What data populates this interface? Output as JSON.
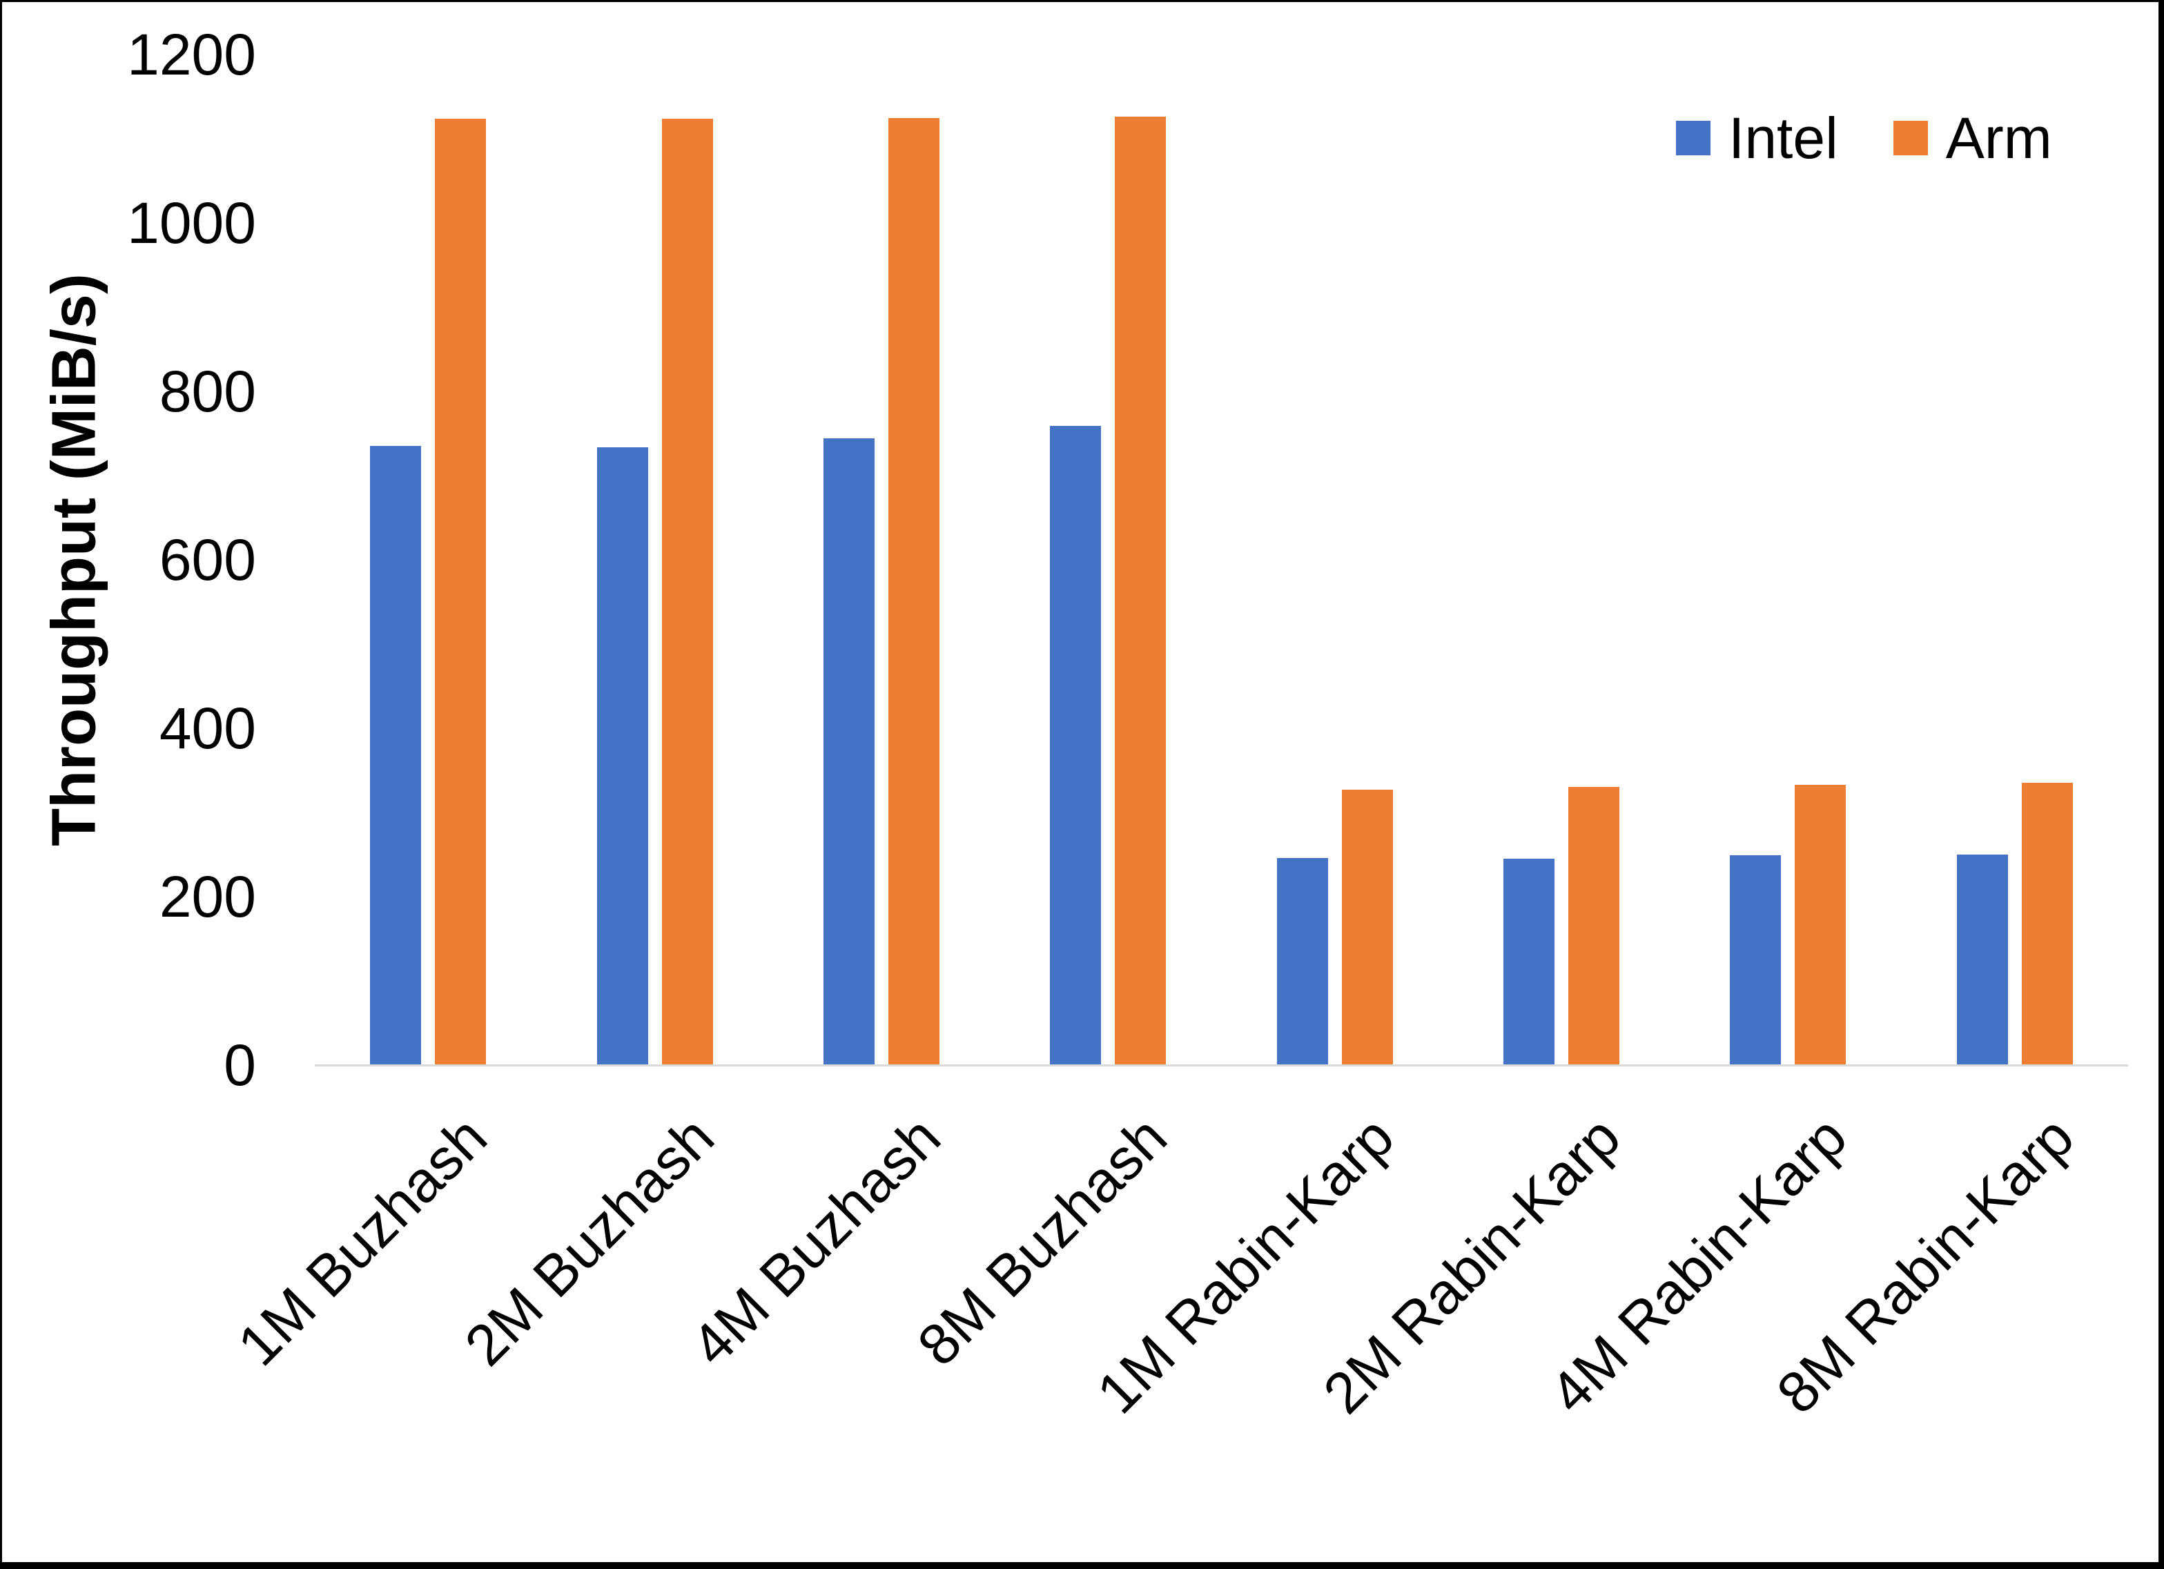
{
  "chart_data": {
    "type": "bar",
    "title": "",
    "xlabel": "",
    "ylabel": "Throughput (MiB/s)",
    "ylim": [
      0,
      1200
    ],
    "yticks": [
      0,
      200,
      400,
      600,
      800,
      1000,
      1200
    ],
    "grid": false,
    "legend_position": "top-right",
    "axis_line_color": "#D9D9D9",
    "text_color": "#000000",
    "categories": [
      "1M Buzhash",
      "2M Buzhash",
      "4M Buzhash",
      "8M Buzhash",
      "1M Rabin-Karp",
      "2M Rabin-Karp",
      "4M Rabin-Karp",
      "8M Rabin-Karp"
    ],
    "series": [
      {
        "name": "Intel",
        "color": "#4472C4",
        "values": [
          735,
          734,
          744,
          759,
          246,
          245,
          249,
          250
        ]
      },
      {
        "name": "Arm",
        "color": "#ED7D31",
        "values": [
          1124,
          1124,
          1125,
          1126,
          327,
          330,
          333,
          335
        ]
      }
    ]
  },
  "legend": {
    "items": [
      {
        "label": "Intel",
        "color": "#4472C4"
      },
      {
        "label": "Arm",
        "color": "#ED7D31"
      }
    ]
  }
}
